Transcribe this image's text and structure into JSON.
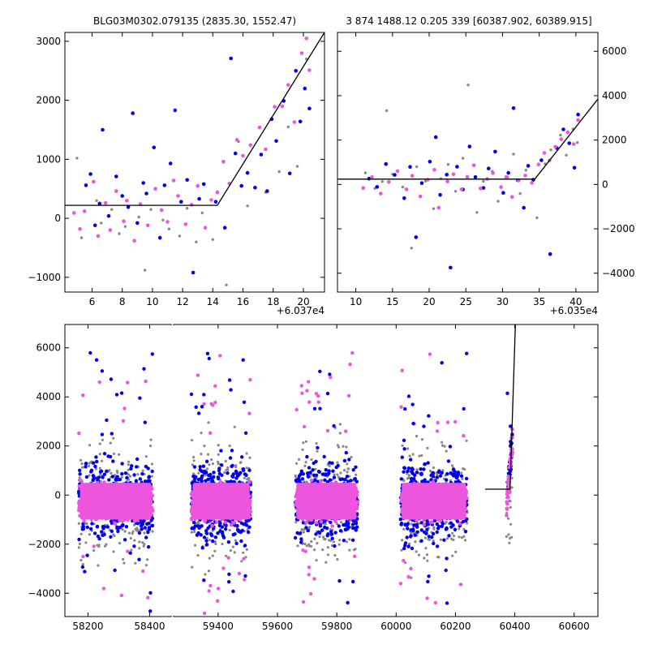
{
  "colors": {
    "gray": "#888888",
    "blue": "#0000ee",
    "pink": "#ee55dd",
    "line": "#000000"
  },
  "chart_data": [
    {
      "type": "scatter",
      "title": "BLG03M0302.079135 (2835.30, 1552.47)",
      "x_offset_label": "+6.037e4",
      "xlim": [
        4.2,
        21.4
      ],
      "ylim": [
        -1250,
        3150
      ],
      "xticks": [
        6,
        8,
        10,
        12,
        14,
        16,
        18,
        20
      ],
      "yticks": [
        -1000,
        0,
        1000,
        2000,
        3000
      ],
      "grid": false,
      "model_line": {
        "x": [
          4.2,
          14.3,
          21.4
        ],
        "y": [
          220,
          220,
          3150
        ]
      },
      "series_colors": [
        "gray",
        "blue",
        "pink"
      ],
      "series": [
        {
          "values": [
            [
              5.0,
              1020
            ],
            [
              5.3,
              -330
            ],
            [
              6.3,
              300
            ],
            [
              6.6,
              -80
            ],
            [
              7.3,
              150
            ],
            [
              7.8,
              -260
            ],
            [
              8.2,
              -140
            ],
            [
              9.1,
              20
            ],
            [
              9.5,
              -880
            ],
            [
              9.9,
              150
            ],
            [
              10.7,
              -30
            ],
            [
              11.1,
              -180
            ],
            [
              11.8,
              -300
            ],
            [
              12.3,
              170
            ],
            [
              12.9,
              -400
            ],
            [
              13.3,
              90
            ],
            [
              14.0,
              -360
            ],
            [
              14.9,
              -1130
            ],
            [
              15.7,
              1300
            ],
            [
              16.3,
              210
            ],
            [
              17.5,
              440
            ],
            [
              18.4,
              790
            ],
            [
              19.0,
              1550
            ],
            [
              19.6,
              880
            ],
            [
              20.2,
              2700
            ]
          ]
        },
        {
          "values": [
            [
              5.6,
              560
            ],
            [
              5.9,
              750
            ],
            [
              6.2,
              -120
            ],
            [
              6.5,
              250
            ],
            [
              6.7,
              1500
            ],
            [
              7.1,
              40
            ],
            [
              7.6,
              710
            ],
            [
              8.0,
              380
            ],
            [
              8.4,
              190
            ],
            [
              8.7,
              1780
            ],
            [
              9.0,
              -80
            ],
            [
              9.4,
              600
            ],
            [
              9.6,
              420
            ],
            [
              10.1,
              1200
            ],
            [
              10.5,
              -330
            ],
            [
              10.8,
              560
            ],
            [
              11.2,
              930
            ],
            [
              11.5,
              1830
            ],
            [
              11.9,
              280
            ],
            [
              12.3,
              650
            ],
            [
              12.7,
              -920
            ],
            [
              13.1,
              330
            ],
            [
              13.4,
              580
            ],
            [
              14.2,
              280
            ],
            [
              14.8,
              -160
            ],
            [
              15.2,
              2710
            ],
            [
              15.5,
              1100
            ],
            [
              15.9,
              550
            ],
            [
              16.3,
              770
            ],
            [
              16.8,
              520
            ],
            [
              17.2,
              1080
            ],
            [
              17.6,
              460
            ],
            [
              17.9,
              1680
            ],
            [
              18.2,
              1310
            ],
            [
              18.7,
              1990
            ],
            [
              19.1,
              760
            ],
            [
              19.5,
              2500
            ],
            [
              19.8,
              1640
            ],
            [
              20.1,
              2200
            ],
            [
              20.4,
              1860
            ]
          ]
        },
        {
          "values": [
            [
              4.8,
              90
            ],
            [
              5.2,
              -180
            ],
            [
              5.5,
              120
            ],
            [
              6.1,
              620
            ],
            [
              6.4,
              -300
            ],
            [
              6.9,
              260
            ],
            [
              7.2,
              -200
            ],
            [
              7.6,
              460
            ],
            [
              8.1,
              -50
            ],
            [
              8.3,
              300
            ],
            [
              8.8,
              -380
            ],
            [
              9.2,
              240
            ],
            [
              9.7,
              -120
            ],
            [
              10.2,
              500
            ],
            [
              10.6,
              140
            ],
            [
              11.0,
              -60
            ],
            [
              11.4,
              640
            ],
            [
              11.7,
              380
            ],
            [
              12.2,
              -100
            ],
            [
              12.6,
              230
            ],
            [
              13.0,
              550
            ],
            [
              13.5,
              -160
            ],
            [
              13.9,
              310
            ],
            [
              14.3,
              440
            ],
            [
              14.7,
              960
            ],
            [
              15.1,
              590
            ],
            [
              15.6,
              1330
            ],
            [
              16.0,
              1060
            ],
            [
              16.5,
              1240
            ],
            [
              17.1,
              1540
            ],
            [
              17.5,
              1170
            ],
            [
              18.1,
              1890
            ],
            [
              18.6,
              1900
            ],
            [
              19.0,
              2260
            ],
            [
              19.4,
              1630
            ],
            [
              19.9,
              2800
            ],
            [
              20.2,
              3050
            ],
            [
              20.4,
              2510
            ]
          ]
        }
      ]
    },
    {
      "type": "scatter",
      "title": "3 874 1488.12 0.205 339 [60387.902, 60389.915]",
      "x_offset_label": "+6.035e4",
      "xlim": [
        7.5,
        43.0
      ],
      "ylim": [
        -4850,
        6850
      ],
      "xticks": [
        10,
        15,
        20,
        25,
        30,
        35,
        40
      ],
      "yticks": [
        -4000,
        -2000,
        0,
        2000,
        4000,
        6000
      ],
      "grid": false,
      "model_line": {
        "x": [
          7.5,
          34.4,
          43.0
        ],
        "y": [
          240,
          240,
          3850
        ]
      },
      "series_colors": [
        "gray",
        "blue",
        "pink"
      ],
      "series": [
        {
          "values": [
            [
              11.3,
              520
            ],
            [
              12.6,
              -180
            ],
            [
              13.6,
              130
            ],
            [
              14.2,
              3320
            ],
            [
              15.0,
              460
            ],
            [
              16.4,
              -120
            ],
            [
              17.6,
              -2870
            ],
            [
              18.3,
              800
            ],
            [
              19.5,
              150
            ],
            [
              20.6,
              -1090
            ],
            [
              21.6,
              260
            ],
            [
              22.6,
              900
            ],
            [
              23.6,
              -310
            ],
            [
              24.6,
              1180
            ],
            [
              25.3,
              4480
            ],
            [
              26.5,
              -1260
            ],
            [
              27.4,
              140
            ],
            [
              28.6,
              590
            ],
            [
              29.4,
              -760
            ],
            [
              30.7,
              330
            ],
            [
              31.5,
              1370
            ],
            [
              32.4,
              -410
            ],
            [
              33.2,
              640
            ],
            [
              34.7,
              -1500
            ],
            [
              35.8,
              930
            ],
            [
              36.6,
              1560
            ],
            [
              37.9,
              2220
            ],
            [
              38.7,
              1320
            ],
            [
              39.6,
              2500
            ],
            [
              40.2,
              1890
            ]
          ]
        },
        {
          "values": [
            [
              11.8,
              260
            ],
            [
              12.9,
              -110
            ],
            [
              14.1,
              920
            ],
            [
              15.3,
              430
            ],
            [
              16.6,
              -620
            ],
            [
              17.4,
              790
            ],
            [
              18.2,
              -2380
            ],
            [
              19.0,
              60
            ],
            [
              20.1,
              1030
            ],
            [
              20.9,
              2130
            ],
            [
              21.5,
              -470
            ],
            [
              22.4,
              440
            ],
            [
              22.9,
              -3750
            ],
            [
              23.8,
              800
            ],
            [
              24.6,
              -230
            ],
            [
              25.5,
              1710
            ],
            [
              26.3,
              330
            ],
            [
              27.4,
              -160
            ],
            [
              28.1,
              720
            ],
            [
              29.0,
              1480
            ],
            [
              30.1,
              -380
            ],
            [
              30.8,
              520
            ],
            [
              31.5,
              3440
            ],
            [
              32.1,
              190
            ],
            [
              32.9,
              -1050
            ],
            [
              33.5,
              840
            ],
            [
              34.2,
              210
            ],
            [
              35.3,
              1090
            ],
            [
              36.5,
              -3140
            ],
            [
              37.4,
              1640
            ],
            [
              38.3,
              2480
            ],
            [
              39.1,
              1860
            ],
            [
              39.8,
              750
            ],
            [
              40.3,
              3150
            ]
          ]
        },
        {
          "values": [
            [
              11.0,
              -160
            ],
            [
              12.2,
              330
            ],
            [
              13.4,
              -410
            ],
            [
              14.5,
              110
            ],
            [
              15.7,
              600
            ],
            [
              16.9,
              -220
            ],
            [
              17.7,
              390
            ],
            [
              18.8,
              -540
            ],
            [
              19.8,
              210
            ],
            [
              20.7,
              660
            ],
            [
              21.3,
              -1050
            ],
            [
              22.5,
              130
            ],
            [
              23.3,
              460
            ],
            [
              24.4,
              -220
            ],
            [
              25.2,
              340
            ],
            [
              26.1,
              860
            ],
            [
              27.0,
              -180
            ],
            [
              27.9,
              250
            ],
            [
              28.7,
              510
            ],
            [
              29.8,
              -120
            ],
            [
              30.5,
              330
            ],
            [
              31.3,
              -560
            ],
            [
              32.2,
              180
            ],
            [
              33.1,
              400
            ],
            [
              34.0,
              70
            ],
            [
              34.9,
              900
            ],
            [
              35.7,
              1420
            ],
            [
              36.4,
              1080
            ],
            [
              37.2,
              1700
            ],
            [
              38.0,
              2040
            ],
            [
              38.9,
              2350
            ],
            [
              39.7,
              1820
            ],
            [
              40.3,
              2900
            ]
          ]
        }
      ]
    },
    {
      "type": "scatter",
      "title": "",
      "xlim": [
        58125,
        60680
      ],
      "ylim": [
        -4950,
        6950
      ],
      "xticks": [
        58200,
        58400,
        59400,
        59600,
        59800,
        60000,
        60200,
        60400,
        60600
      ],
      "yticks": [
        -4000,
        -2000,
        0,
        2000,
        4000,
        6000
      ],
      "grid": false,
      "broken_axis": {
        "left_segment_max": 58470,
        "right_segment_min": 59250
      },
      "model_line": {
        "x": [
          60300,
          60384,
          60402
        ],
        "y": [
          240,
          240,
          6950
        ]
      },
      "series_colors": [
        "gray",
        "blue",
        "pink"
      ],
      "seasons": [
        {
          "x_range": [
            58170,
            58410
          ],
          "core_band": [
            -1000,
            500
          ]
        },
        {
          "x_range": [
            59310,
            59510
          ],
          "core_band": [
            -1000,
            500
          ]
        },
        {
          "x_range": [
            59660,
            59870
          ],
          "core_band": [
            -1000,
            500
          ]
        },
        {
          "x_range": [
            60015,
            60240
          ],
          "core_band": [
            -1000,
            500
          ]
        },
        {
          "x_range": [
            60372,
            60392
          ],
          "core_band": [
            -500,
            3000
          ]
        }
      ]
    }
  ]
}
